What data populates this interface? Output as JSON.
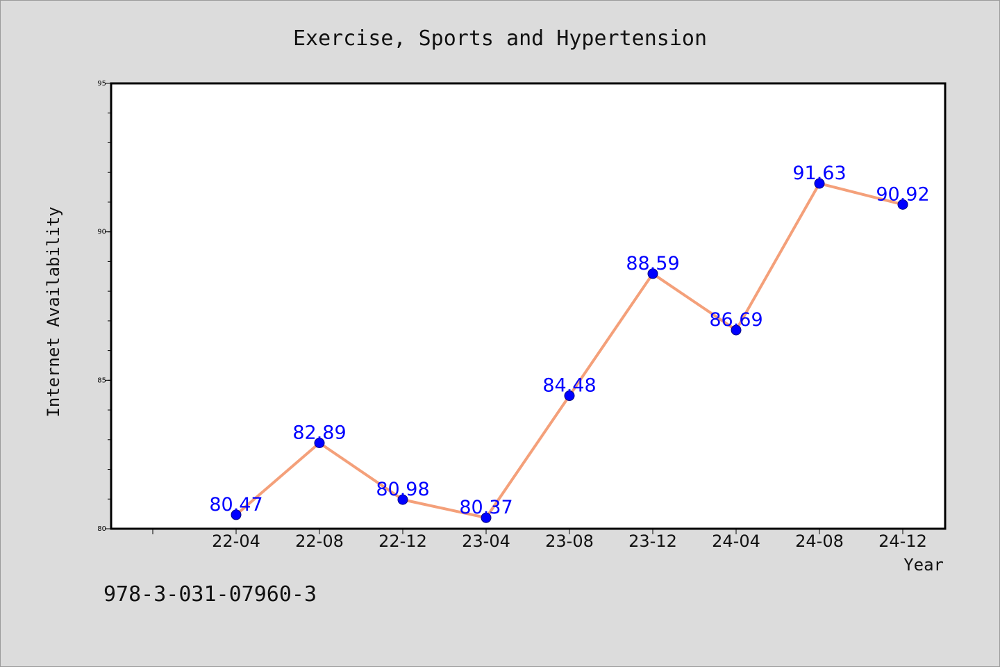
{
  "chart_data": {
    "type": "line",
    "title": "Exercise, Sports and Hypertension",
    "xlabel": "Year",
    "ylabel": "Internet Availability",
    "categories": [
      "22-04",
      "22-08",
      "22-12",
      "23-04",
      "23-08",
      "23-12",
      "24-04",
      "24-08",
      "24-12"
    ],
    "values": [
      80.47,
      82.89,
      80.98,
      80.37,
      84.48,
      88.59,
      86.69,
      91.63,
      90.92
    ],
    "data_labels": [
      "80.47",
      "82.89",
      "80.98",
      "80.37",
      "84.48",
      "88.59",
      "86.69",
      "91.63",
      "90.92"
    ],
    "ylim": [
      80,
      95
    ],
    "yticks": [
      80,
      85,
      90,
      95
    ],
    "ytick_labels": [
      "80",
      "85",
      "90",
      "95"
    ],
    "grid": false,
    "legend": "none",
    "colors": {
      "line": "#f4a07a",
      "marker": "#0000ff",
      "marker_edge": "#000080",
      "data_label": "#0000ff",
      "background": "#dcdcdc",
      "plot_background": "#ffffff"
    }
  },
  "footer": {
    "identifier": "978-3-031-07960-3"
  }
}
